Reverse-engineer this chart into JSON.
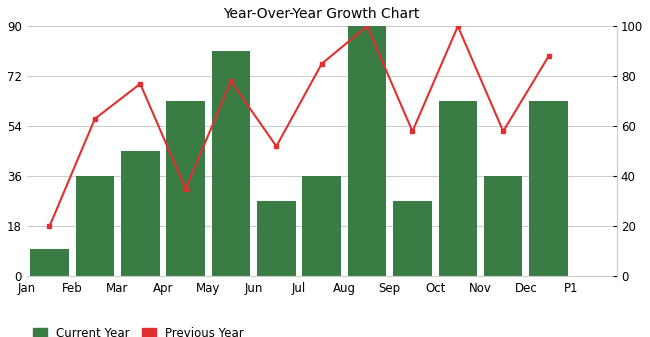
{
  "categories": [
    "Jan",
    "Feb",
    "Mar",
    "Apr",
    "May",
    "Jun",
    "Jul",
    "Aug",
    "Sep",
    "Oct",
    "Nov",
    "Dec",
    "P1"
  ],
  "bar_months": [
    "Jan",
    "Feb",
    "Mar",
    "Apr",
    "May",
    "Jun",
    "Jul",
    "Aug",
    "Sep",
    "Oct",
    "Nov",
    "Dec"
  ],
  "current_year": [
    10,
    36,
    45,
    63,
    81,
    27,
    36,
    90,
    27,
    63,
    36,
    63
  ],
  "previous_year": [
    20,
    63,
    77,
    35,
    78,
    52,
    85,
    100,
    58,
    100,
    58,
    88
  ],
  "bar_color": "#3a7d44",
  "line_color": "#e03030",
  "title": "Year-Over-Year Growth Chart",
  "left_ylim": [
    0,
    90
  ],
  "right_ylim": [
    0,
    100
  ],
  "left_yticks": [
    0,
    18,
    36,
    54,
    72,
    90
  ],
  "right_yticks": [
    0,
    20,
    40,
    60,
    80,
    100
  ],
  "legend_current": "Current Year",
  "legend_previous": "Previous Year",
  "background_color": "#ffffff",
  "grid_color": "#cccccc"
}
